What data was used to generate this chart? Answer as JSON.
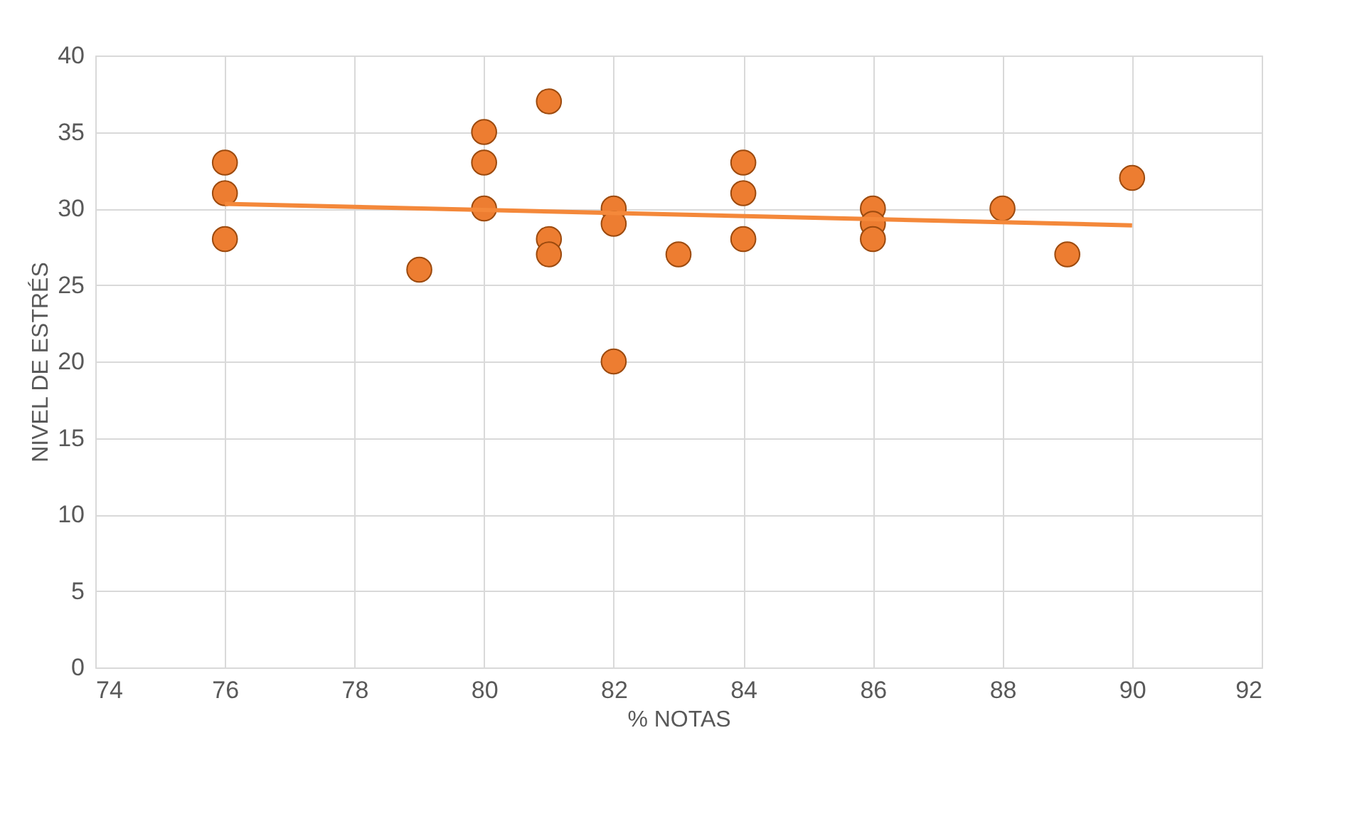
{
  "chart_data": {
    "type": "scatter",
    "xlabel": "% NOTAS",
    "ylabel": "NIVEL DE ESTRÉS",
    "xlim": [
      74,
      92
    ],
    "xticks": [
      74,
      76,
      78,
      80,
      82,
      84,
      86,
      88,
      90,
      92
    ],
    "ylim": [
      0,
      40
    ],
    "yticks": [
      0,
      5,
      10,
      15,
      20,
      25,
      30,
      35,
      40
    ],
    "grid": true,
    "series": [
      {
        "color": "#ed7d31",
        "marker": "circle",
        "x": [
          76,
          76,
          76,
          79,
          80,
          80,
          80,
          81,
          81,
          81,
          82,
          82,
          82,
          83,
          84,
          84,
          84,
          86,
          86,
          86,
          88,
          89,
          90
        ],
        "values": [
          33,
          31,
          28,
          26,
          35,
          33,
          30,
          37,
          28,
          27,
          30,
          29,
          20,
          27,
          33,
          31,
          28,
          30,
          29,
          28,
          30,
          27,
          32
        ]
      },
      {
        "type": "line",
        "color": "#f4883a",
        "marker": "none",
        "line_style": "solid",
        "x": [
          76,
          90
        ],
        "values": [
          30.3,
          28.9
        ]
      }
    ]
  }
}
